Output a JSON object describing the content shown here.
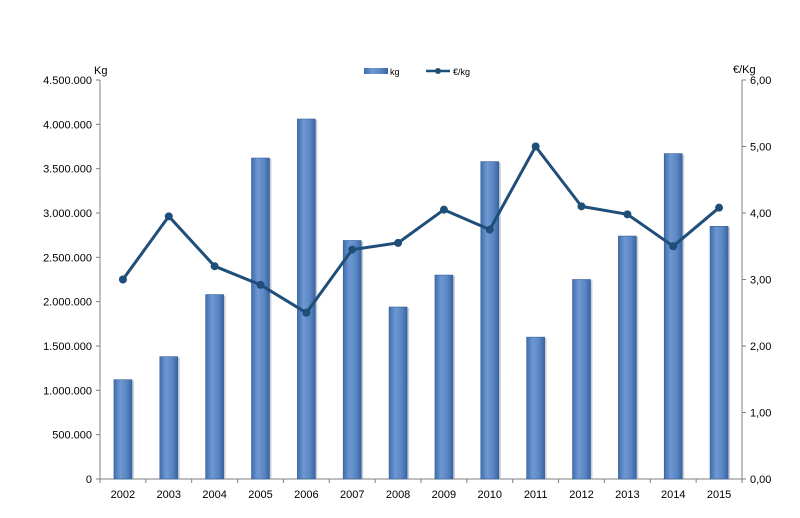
{
  "chart_data": {
    "type": "bar",
    "categories": [
      "2002",
      "2003",
      "2004",
      "2005",
      "2006",
      "2007",
      "2008",
      "2009",
      "2010",
      "2011",
      "2012",
      "2013",
      "2014",
      "2015"
    ],
    "series": [
      {
        "name": "kg",
        "type": "bar",
        "axis": "left",
        "values": [
          1120000,
          1380000,
          2080000,
          3620000,
          4060000,
          2690000,
          1940000,
          2300000,
          3580000,
          1600000,
          2250000,
          2740000,
          3670000,
          2850000
        ]
      },
      {
        "name": "€/kg",
        "type": "line",
        "axis": "right",
        "values": [
          3.0,
          3.95,
          3.2,
          2.92,
          2.5,
          3.45,
          3.55,
          4.05,
          3.75,
          5.0,
          4.1,
          3.98,
          3.5,
          4.08
        ]
      }
    ],
    "ylabel_left": "Kg",
    "ylabel_right": "€/Kg",
    "ylim_left": [
      0,
      4500000
    ],
    "ylim_right": [
      0,
      6
    ],
    "yticks_left": [
      "0",
      "500.000",
      "1.000.000",
      "1.500.000",
      "2.000.000",
      "2.500.000",
      "3.000.000",
      "3.500.000",
      "4.000.000",
      "4.500.000"
    ],
    "yticks_right": [
      "0,00",
      "1,00",
      "2,00",
      "3,00",
      "4,00",
      "5,00",
      "6,00"
    ],
    "grid": false,
    "legend_position": "top-center",
    "colors": {
      "bar": "#5b87c5",
      "bar_dark": "#3a6aa8",
      "line": "#1f4e79"
    }
  }
}
